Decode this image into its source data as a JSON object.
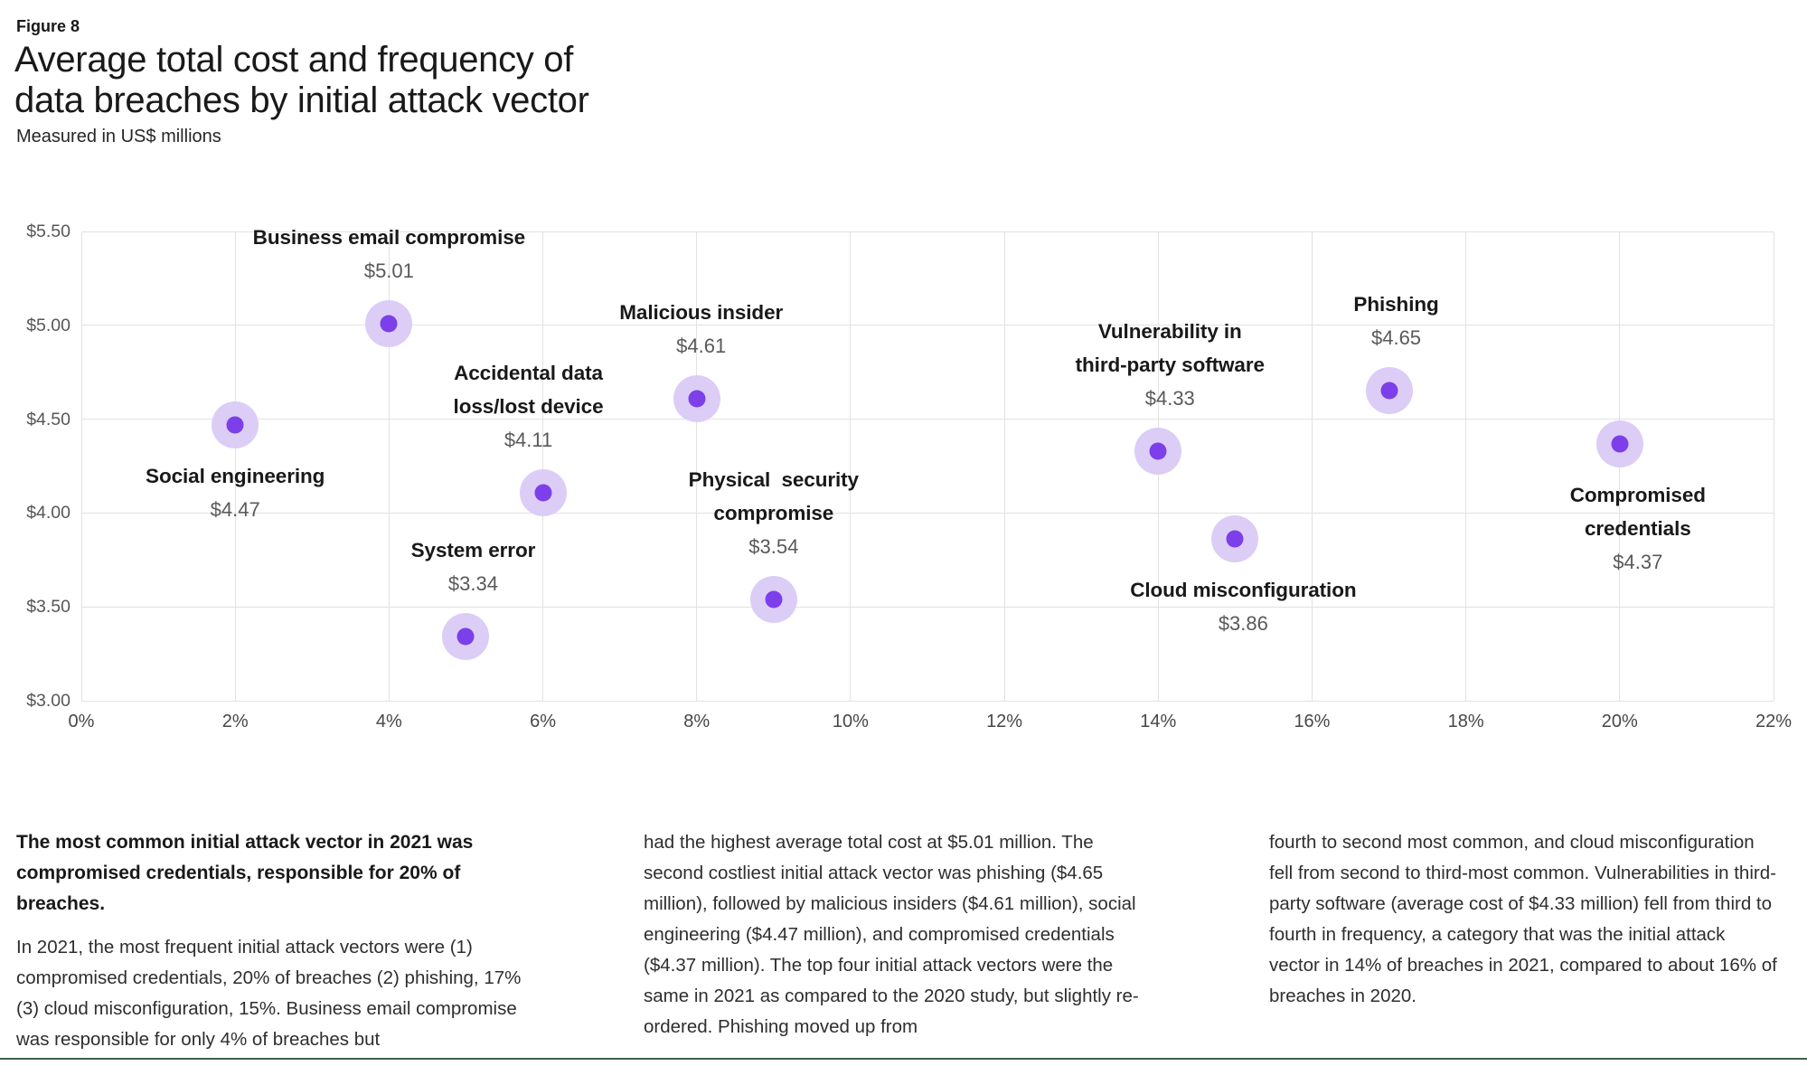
{
  "page": {
    "figure_label": "Figure 8",
    "title": "Average total cost and frequency of\ndata breaches by initial attack vector",
    "subtitle": "Measured in US$ millions"
  },
  "colors": {
    "dot": "#7c3fe9",
    "halo": "#dccdf7",
    "grid": "#e2e2e2",
    "label_text": "#191919",
    "value_text": "#595959",
    "bottom_rule": "#3e614b"
  },
  "chart_data": {
    "type": "scatter",
    "title": "Average total cost and frequency of data breaches by initial attack vector",
    "subtitle": "Measured in US$ millions",
    "grid": true,
    "x_axis": {
      "unit": "% of breaches (frequency)",
      "min": 0,
      "max": 22,
      "tick_values": [
        0,
        2,
        4,
        6,
        8,
        10,
        12,
        14,
        16,
        18,
        20,
        22
      ],
      "tick_labels": [
        "0%",
        "2%",
        "4%",
        "6%",
        "8%",
        "10%",
        "12%",
        "14%",
        "16%",
        "18%",
        "20%",
        "22%"
      ]
    },
    "y_axis": {
      "unit": "US$ millions (average total cost)",
      "min": 3.0,
      "max": 5.5,
      "tick_values": [
        5.5,
        5.0,
        4.5,
        4.0,
        3.5,
        3.0
      ],
      "tick_labels": [
        "$5.50",
        "$5.00",
        "$4.50",
        "$4.00",
        "$3.50",
        "$3.00"
      ]
    },
    "points": [
      {
        "name": "Social engineering",
        "frequency_pct": 2,
        "cost_musd": 4.47,
        "value_label": "$4.47",
        "label": "Social engineering",
        "label_side": "below",
        "label_dx": 0
      },
      {
        "name": "Business email compromise",
        "frequency_pct": 4,
        "cost_musd": 5.01,
        "value_label": "$5.01",
        "label": "Business email compromise",
        "label_side": "above",
        "label_dx": 0
      },
      {
        "name": "System error",
        "frequency_pct": 5,
        "cost_musd": 3.34,
        "value_label": "$3.34",
        "label": "System error",
        "label_side": "above",
        "label_dx": 8
      },
      {
        "name": "Accidental data loss/lost device",
        "frequency_pct": 6,
        "cost_musd": 4.11,
        "value_label": "$4.11",
        "label": "Accidental data\nloss/lost device",
        "label_side": "above",
        "label_dx": -16
      },
      {
        "name": "Malicious insider",
        "frequency_pct": 8,
        "cost_musd": 4.61,
        "value_label": "$4.61",
        "label": "Malicious insider",
        "label_side": "above",
        "label_dx": 5
      },
      {
        "name": "Physical security compromise",
        "frequency_pct": 9,
        "cost_musd": 3.54,
        "value_label": "$3.54",
        "label": "Physical  security\ncompromise",
        "label_side": "above",
        "label_dx": 0
      },
      {
        "name": "Vulnerability in third-party software",
        "frequency_pct": 14,
        "cost_musd": 4.33,
        "value_label": "$4.33",
        "label": "Vulnerability in\nthird-party software",
        "label_side": "above",
        "label_dx": 13
      },
      {
        "name": "Cloud misconfiguration",
        "frequency_pct": 15,
        "cost_musd": 3.86,
        "value_label": "$3.86",
        "label": "Cloud misconfiguration",
        "label_side": "below",
        "label_dx": 9
      },
      {
        "name": "Phishing",
        "frequency_pct": 17,
        "cost_musd": 4.65,
        "value_label": "$4.65",
        "label": "Phishing",
        "label_side": "above",
        "label_dx": 8
      },
      {
        "name": "Compromised credentials",
        "frequency_pct": 20,
        "cost_musd": 4.37,
        "value_label": "$4.37",
        "label": "Compromised credentials",
        "label_side": "below",
        "label_dx": 20
      }
    ]
  },
  "commentary": {
    "col1_heading": "The most common initial attack vector in 2021 was compromised credentials, responsible for 20% of breaches.",
    "col1_body": "In 2021, the most frequent initial attack vectors were (1) compromised credentials, 20% of breaches (2) phishing, 17% (3) cloud misconfiguration, 15%. Business email compromise was responsible for only 4% of breaches but",
    "col2_body": "had the highest average total cost at $5.01 million. The second costliest initial attack vector was phishing ($4.65 million), followed by malicious insiders ($4.61 million), social engineering ($4.47 million), and compromised credentials ($4.37 million). The top four initial attack vectors were the same in 2021 as compared to the 2020 study, but slightly re-ordered. Phishing moved up from",
    "col3_body": "fourth to second most common, and cloud misconfiguration fell from second to third-most common. Vulnerabilities in third-party software (average cost of $4.33 million) fell from third to fourth in frequency, a category that was the initial attack vector in 14% of breaches in 2021, compared to about 16% of breaches in 2020."
  }
}
